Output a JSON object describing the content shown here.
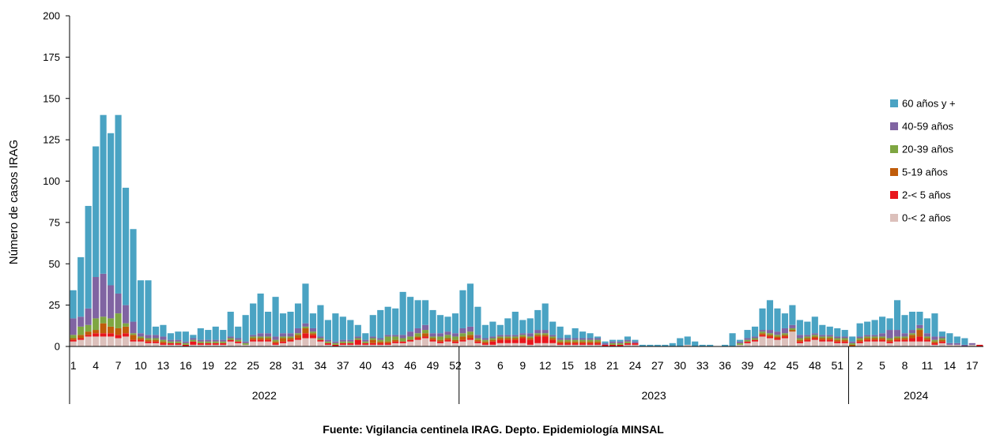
{
  "chart_data": {
    "type": "bar",
    "stacked": true,
    "ylabel": "Número de casos IRAG",
    "ylim": [
      0,
      200
    ],
    "yticks": [
      0,
      25,
      50,
      75,
      100,
      125,
      150,
      175,
      200
    ],
    "source": "Fuente: Vigilancia centinela IRAG. Depto. Epidemiología MINSAL",
    "legend_position": "right",
    "years": [
      {
        "label": "2022",
        "weeks": 52
      },
      {
        "label": "2023",
        "weeks": 52
      },
      {
        "label": "2024",
        "weeks": 18
      }
    ],
    "x_tick_labels": [
      {
        "index": 0,
        "label": "1"
      },
      {
        "index": 3,
        "label": "4"
      },
      {
        "index": 6,
        "label": "7"
      },
      {
        "index": 9,
        "label": "10"
      },
      {
        "index": 12,
        "label": "13"
      },
      {
        "index": 15,
        "label": "16"
      },
      {
        "index": 18,
        "label": "19"
      },
      {
        "index": 21,
        "label": "22"
      },
      {
        "index": 24,
        "label": "25"
      },
      {
        "index": 27,
        "label": "28"
      },
      {
        "index": 30,
        "label": "31"
      },
      {
        "index": 33,
        "label": "34"
      },
      {
        "index": 36,
        "label": "37"
      },
      {
        "index": 39,
        "label": "40"
      },
      {
        "index": 42,
        "label": "43"
      },
      {
        "index": 45,
        "label": "46"
      },
      {
        "index": 48,
        "label": "49"
      },
      {
        "index": 51,
        "label": "52"
      },
      {
        "index": 54,
        "label": "3"
      },
      {
        "index": 57,
        "label": "6"
      },
      {
        "index": 60,
        "label": "9"
      },
      {
        "index": 63,
        "label": "12"
      },
      {
        "index": 66,
        "label": "15"
      },
      {
        "index": 69,
        "label": "18"
      },
      {
        "index": 72,
        "label": "21"
      },
      {
        "index": 75,
        "label": "24"
      },
      {
        "index": 78,
        "label": "27"
      },
      {
        "index": 81,
        "label": "30"
      },
      {
        "index": 84,
        "label": "33"
      },
      {
        "index": 87,
        "label": "36"
      },
      {
        "index": 90,
        "label": "39"
      },
      {
        "index": 93,
        "label": "42"
      },
      {
        "index": 96,
        "label": "45"
      },
      {
        "index": 99,
        "label": "48"
      },
      {
        "index": 102,
        "label": "51"
      },
      {
        "index": 105,
        "label": "2"
      },
      {
        "index": 108,
        "label": "5"
      },
      {
        "index": 111,
        "label": "8"
      },
      {
        "index": 114,
        "label": "11"
      },
      {
        "index": 117,
        "label": "14"
      },
      {
        "index": 120,
        "label": "17"
      }
    ],
    "series": [
      {
        "name": "0-< 2 años",
        "color": "#dcc0bb",
        "values": [
          3,
          4,
          6,
          6,
          6,
          6,
          5,
          6,
          3,
          3,
          2,
          2,
          1,
          1,
          1,
          0,
          1,
          1,
          1,
          1,
          1,
          3,
          2,
          1,
          3,
          3,
          3,
          1,
          2,
          3,
          4,
          5,
          5,
          3,
          1,
          0,
          1,
          1,
          1,
          1,
          1,
          1,
          1,
          2,
          2,
          3,
          4,
          5,
          3,
          2,
          3,
          2,
          3,
          4,
          2,
          1,
          1,
          2,
          2,
          2,
          2,
          1,
          2,
          2,
          2,
          1,
          1,
          1,
          1,
          1,
          1,
          0,
          0,
          0,
          1,
          1,
          0,
          0,
          0,
          0,
          0,
          0,
          1,
          0,
          0,
          0,
          0,
          0,
          0,
          1,
          2,
          3,
          6,
          5,
          4,
          5,
          9,
          2,
          3,
          4,
          3,
          3,
          2,
          2,
          0,
          2,
          3,
          3,
          3,
          2,
          3,
          3,
          3,
          3,
          3,
          1,
          2,
          1,
          1,
          0,
          1,
          0
        ]
      },
      {
        "name": "2-< 5 años",
        "color": "#e8161d",
        "values": [
          1,
          1,
          1,
          2,
          2,
          2,
          2,
          2,
          1,
          1,
          1,
          1,
          1,
          1,
          1,
          1,
          2,
          1,
          1,
          1,
          1,
          1,
          1,
          0,
          1,
          1,
          1,
          1,
          1,
          1,
          1,
          3,
          2,
          1,
          1,
          1,
          1,
          1,
          3,
          1,
          1,
          1,
          1,
          1,
          1,
          1,
          1,
          1,
          1,
          1,
          1,
          1,
          1,
          1,
          1,
          1,
          2,
          2,
          2,
          2,
          3,
          3,
          4,
          4,
          2,
          1,
          1,
          1,
          1,
          1,
          1,
          1,
          1,
          1,
          1,
          1,
          0,
          0,
          0,
          0,
          0,
          0,
          0,
          0,
          0,
          0,
          0,
          0,
          0,
          0,
          1,
          1,
          1,
          1,
          1,
          1,
          0,
          1,
          1,
          1,
          1,
          1,
          1,
          1,
          0,
          1,
          1,
          1,
          1,
          1,
          1,
          1,
          2,
          3,
          1,
          1,
          1,
          0,
          0,
          0,
          0,
          1
        ]
      },
      {
        "name": "5-19 años",
        "color": "#c05c0a",
        "values": [
          1,
          2,
          2,
          2,
          6,
          4,
          4,
          4,
          3,
          1,
          1,
          1,
          1,
          0,
          0,
          0,
          0,
          0,
          0,
          0,
          0,
          0,
          0,
          0,
          1,
          1,
          1,
          1,
          2,
          1,
          2,
          3,
          1,
          0,
          0,
          0,
          0,
          0,
          0,
          0,
          2,
          1,
          1,
          1,
          0,
          0,
          1,
          2,
          1,
          1,
          1,
          1,
          2,
          2,
          1,
          1,
          1,
          1,
          1,
          1,
          1,
          1,
          1,
          1,
          1,
          1,
          1,
          1,
          1,
          1,
          1,
          0,
          0,
          0,
          0,
          0,
          0,
          0,
          0,
          0,
          0,
          0,
          0,
          0,
          0,
          0,
          0,
          0,
          0,
          0,
          0,
          0,
          1,
          1,
          1,
          1,
          1,
          1,
          1,
          1,
          1,
          1,
          1,
          1,
          1,
          1,
          1,
          1,
          1,
          1,
          1,
          1,
          2,
          4,
          1,
          1,
          1,
          0,
          0,
          0,
          0,
          0
        ]
      },
      {
        "name": "20-39 años",
        "color": "#7ea641",
        "values": [
          2,
          5,
          4,
          7,
          4,
          5,
          9,
          2,
          1,
          1,
          1,
          1,
          1,
          1,
          1,
          1,
          1,
          1,
          1,
          1,
          1,
          1,
          1,
          1,
          1,
          1,
          1,
          1,
          1,
          1,
          1,
          1,
          1,
          1,
          1,
          1,
          1,
          1,
          1,
          1,
          1,
          1,
          3,
          2,
          2,
          2,
          2,
          2,
          1,
          2,
          2,
          2,
          2,
          2,
          1,
          1,
          1,
          1,
          1,
          1,
          1,
          1,
          1,
          1,
          1,
          1,
          1,
          1,
          1,
          1,
          1,
          0,
          1,
          1,
          1,
          0,
          0,
          0,
          0,
          0,
          0,
          0,
          0,
          0,
          0,
          0,
          0,
          0,
          0,
          1,
          1,
          1,
          1,
          1,
          1,
          1,
          1,
          1,
          1,
          1,
          1,
          1,
          1,
          1,
          1,
          1,
          1,
          1,
          1,
          1,
          1,
          1,
          1,
          1,
          1,
          1,
          1,
          0,
          0,
          0,
          0,
          0
        ]
      },
      {
        "name": "40-59 años",
        "color": "#8064a2",
        "values": [
          10,
          6,
          10,
          25,
          26,
          20,
          12,
          11,
          7,
          2,
          2,
          2,
          2,
          1,
          1,
          1,
          1,
          1,
          1,
          1,
          1,
          1,
          1,
          1,
          1,
          2,
          2,
          2,
          2,
          2,
          3,
          2,
          2,
          1,
          1,
          1,
          1,
          1,
          1,
          1,
          1,
          1,
          1,
          1,
          2,
          3,
          3,
          3,
          2,
          2,
          2,
          2,
          3,
          3,
          2,
          1,
          1,
          1,
          1,
          1,
          1,
          2,
          2,
          2,
          1,
          1,
          1,
          1,
          1,
          1,
          1,
          1,
          1,
          1,
          1,
          1,
          0,
          0,
          0,
          0,
          0,
          0,
          0,
          0,
          0,
          0,
          0,
          0,
          0,
          1,
          1,
          1,
          1,
          2,
          2,
          3,
          2,
          2,
          1,
          1,
          1,
          1,
          1,
          1,
          1,
          1,
          1,
          1,
          2,
          5,
          4,
          2,
          2,
          2,
          2,
          2,
          1,
          1,
          1,
          1,
          1,
          0
        ]
      },
      {
        "name": "60 años y +",
        "color": "#4aa3c3",
        "values": [
          17,
          36,
          62,
          79,
          96,
          92,
          108,
          71,
          56,
          32,
          33,
          5,
          7,
          4,
          5,
          6,
          2,
          7,
          6,
          8,
          6,
          15,
          7,
          16,
          19,
          24,
          13,
          24,
          12,
          13,
          15,
          24,
          9,
          19,
          12,
          17,
          14,
          12,
          7,
          4,
          13,
          17,
          17,
          16,
          26,
          21,
          17,
          15,
          14,
          11,
          9,
          12,
          23,
          26,
          17,
          8,
          9,
          6,
          10,
          14,
          8,
          9,
          12,
          16,
          8,
          7,
          2,
          6,
          4,
          3,
          1,
          1,
          1,
          1,
          2,
          1,
          1,
          1,
          1,
          1,
          2,
          5,
          5,
          3,
          1,
          1,
          0,
          1,
          8,
          1,
          5,
          6,
          13,
          18,
          14,
          9,
          12,
          9,
          8,
          10,
          6,
          5,
          5,
          4,
          3,
          8,
          8,
          9,
          10,
          7,
          18,
          11,
          11,
          8,
          9,
          14,
          3,
          6,
          4,
          4,
          0,
          0
        ]
      }
    ]
  }
}
